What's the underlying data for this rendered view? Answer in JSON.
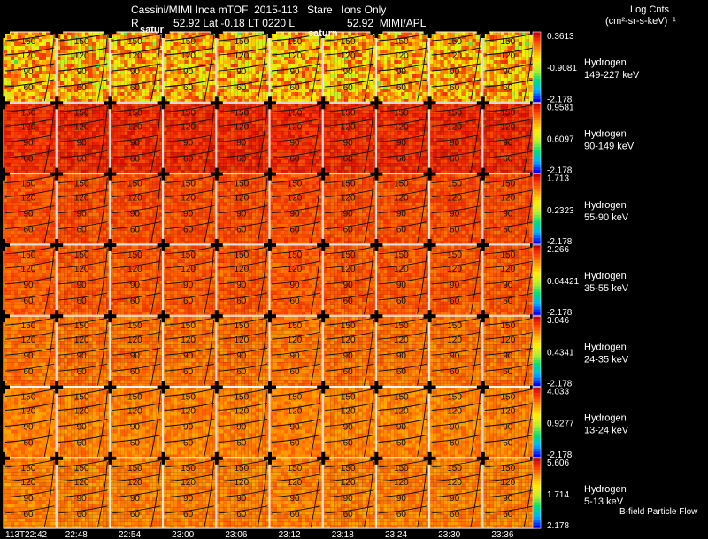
{
  "header": {
    "line1": "Cassini/MIMI Inca mTOF  2015-113   Stare   Ions Only",
    "line2_r": "R",
    "line2_mid": "52.92 Lat -0.18 LT 0220 L",
    "line2_right": "52.92  MIMI/APL",
    "units_title": "Log Cnts",
    "units": "(cm²-sr-s-keV)⁻¹",
    "saturn_labels": [
      "satur",
      "saturn"
    ]
  },
  "footer": {
    "bfield_label": "B-field Particle Flow"
  },
  "chart_data": {
    "type": "heatmap",
    "time_labels": [
      "113T22:42",
      "22:48",
      "22:54",
      "23:00",
      "23:06",
      "23:12",
      "23:18",
      "23:24",
      "23:30",
      "23:36"
    ],
    "contour_labels": [
      "150",
      "120",
      "90",
      "60"
    ],
    "rows": [
      {
        "species": "Hydrogen",
        "energy": "149-227 keV",
        "max": "0.3613",
        "mid": "-0.9081",
        "min": "-2.178",
        "level": 0.7
      },
      {
        "species": "Hydrogen",
        "energy": "90-149 keV",
        "max": "0.9581",
        "mid": "0.6097",
        "min": "-2.178",
        "level": 0.92
      },
      {
        "species": "Hydrogen",
        "energy": "55-90 keV",
        "max": "1.713",
        "mid": "0.2323",
        "min": "-2.178",
        "level": 0.86
      },
      {
        "species": "Hydrogen",
        "energy": "35-55 keV",
        "max": "2.266",
        "mid": "0.04421",
        "min": "-2.178",
        "level": 0.84
      },
      {
        "species": "Hydrogen",
        "energy": "24-35 keV",
        "max": "3.046",
        "mid": "0.4341",
        "min": "-2.178",
        "level": 0.8
      },
      {
        "species": "Hydrogen",
        "energy": "13-24 keV",
        "max": "4.033",
        "mid": "0.9277",
        "min": "-2.178",
        "level": 0.78
      },
      {
        "species": "Hydrogen",
        "energy": "5-13 keV",
        "max": "5.606",
        "mid": "1.714",
        "min": "2.178",
        "level": 0.78
      }
    ]
  }
}
